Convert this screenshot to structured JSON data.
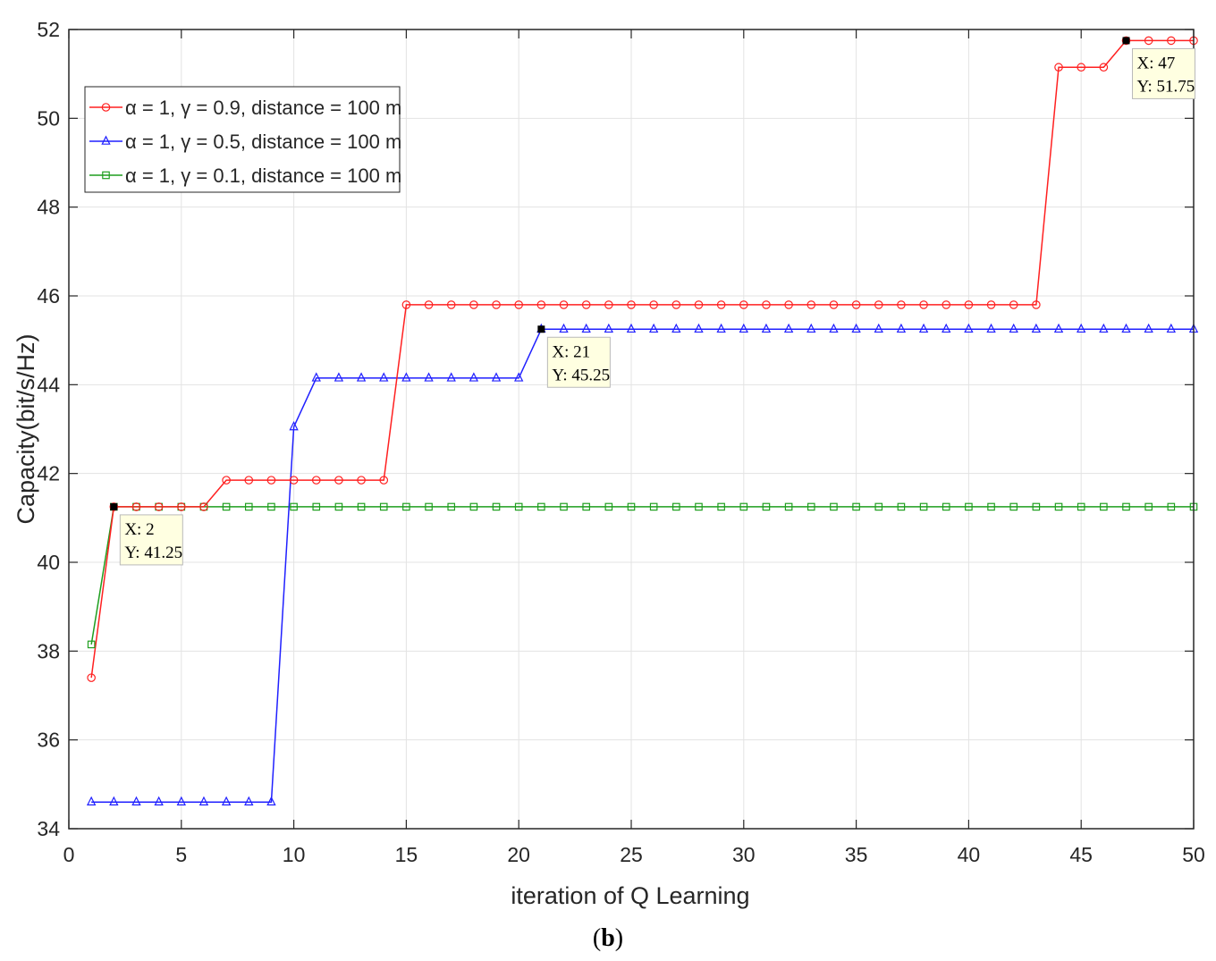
{
  "caption": {
    "open": "(",
    "letter": "b",
    "close": ")"
  },
  "chart_data": {
    "type": "line",
    "xlabel": "iteration of Q Learning",
    "ylabel": "Capacity(bit/s/Hz)",
    "xlim": [
      0,
      50
    ],
    "ylim": [
      34,
      52
    ],
    "xticks": [
      "0",
      "5",
      "10",
      "15",
      "20",
      "25",
      "30",
      "35",
      "40",
      "45",
      "50"
    ],
    "yticks": [
      "34",
      "36",
      "38",
      "40",
      "42",
      "44",
      "46",
      "48",
      "50",
      "52"
    ],
    "grid": true,
    "legend_position": "top-left",
    "x": [
      1,
      2,
      3,
      4,
      5,
      6,
      7,
      8,
      9,
      10,
      11,
      12,
      13,
      14,
      15,
      16,
      17,
      18,
      19,
      20,
      21,
      22,
      23,
      24,
      25,
      26,
      27,
      28,
      29,
      30,
      31,
      32,
      33,
      34,
      35,
      36,
      37,
      38,
      39,
      40,
      41,
      42,
      43,
      44,
      45,
      46,
      47,
      48,
      49,
      50
    ],
    "series": [
      {
        "name": "α = 1, γ = 0.9, distance = 100 m",
        "color": "#ff2020",
        "marker": "circle",
        "values": [
          37.4,
          41.25,
          41.25,
          41.25,
          41.25,
          41.25,
          41.85,
          41.85,
          41.85,
          41.85,
          41.85,
          41.85,
          41.85,
          41.85,
          45.8,
          45.8,
          45.8,
          45.8,
          45.8,
          45.8,
          45.8,
          45.8,
          45.8,
          45.8,
          45.8,
          45.8,
          45.8,
          45.8,
          45.8,
          45.8,
          45.8,
          45.8,
          45.8,
          45.8,
          45.8,
          45.8,
          45.8,
          45.8,
          45.8,
          45.8,
          45.8,
          45.8,
          45.8,
          51.15,
          51.15,
          51.15,
          51.75,
          51.75,
          51.75,
          51.75
        ]
      },
      {
        "name": "α = 1, γ = 0.5, distance = 100 m",
        "color": "#2020ff",
        "marker": "triangle",
        "values": [
          34.6,
          34.6,
          34.6,
          34.6,
          34.6,
          34.6,
          34.6,
          34.6,
          34.6,
          43.05,
          44.15,
          44.15,
          44.15,
          44.15,
          44.15,
          44.15,
          44.15,
          44.15,
          44.15,
          44.15,
          45.25,
          45.25,
          45.25,
          45.25,
          45.25,
          45.25,
          45.25,
          45.25,
          45.25,
          45.25,
          45.25,
          45.25,
          45.25,
          45.25,
          45.25,
          45.25,
          45.25,
          45.25,
          45.25,
          45.25,
          45.25,
          45.25,
          45.25,
          45.25,
          45.25,
          45.25,
          45.25,
          45.25,
          45.25,
          45.25
        ]
      },
      {
        "name": "α = 1, γ = 0.1, distance = 100 m",
        "color": "#1e9e1e",
        "marker": "square",
        "values": [
          38.15,
          41.25,
          41.25,
          41.25,
          41.25,
          41.25,
          41.25,
          41.25,
          41.25,
          41.25,
          41.25,
          41.25,
          41.25,
          41.25,
          41.25,
          41.25,
          41.25,
          41.25,
          41.25,
          41.25,
          41.25,
          41.25,
          41.25,
          41.25,
          41.25,
          41.25,
          41.25,
          41.25,
          41.25,
          41.25,
          41.25,
          41.25,
          41.25,
          41.25,
          41.25,
          41.25,
          41.25,
          41.25,
          41.25,
          41.25,
          41.25,
          41.25,
          41.25,
          41.25,
          41.25,
          41.25,
          41.25,
          41.25,
          41.25,
          41.25
        ]
      }
    ],
    "annotations": [
      {
        "x": 2,
        "y": 41.25,
        "line1": "X: 2",
        "line2": "Y: 41.25"
      },
      {
        "x": 21,
        "y": 45.25,
        "line1": "X: 21",
        "line2": "Y: 45.25"
      },
      {
        "x": 47,
        "y": 51.75,
        "line1": "X: 47",
        "line2": "Y: 51.75"
      }
    ]
  }
}
